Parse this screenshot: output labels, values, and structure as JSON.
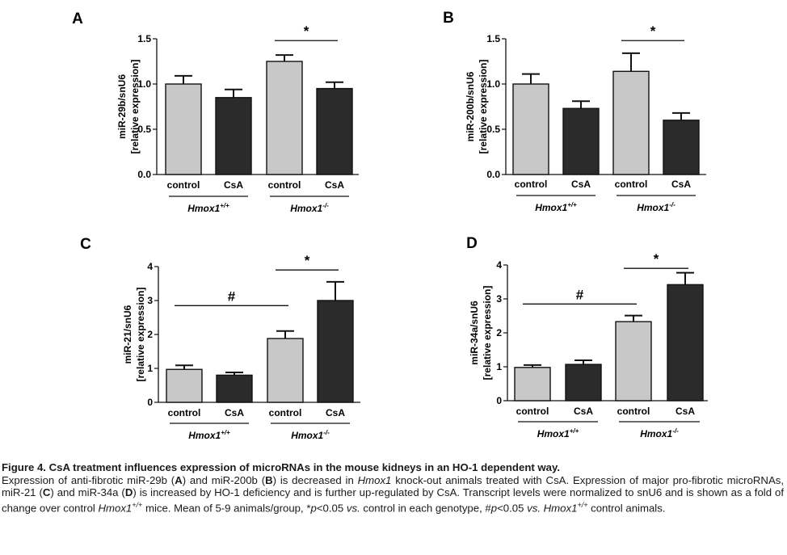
{
  "chart_data": [
    {
      "type": "bar",
      "panel_label": "A",
      "categories": [
        "control",
        "CsA",
        "control",
        "CsA"
      ],
      "values": [
        1.0,
        0.85,
        1.25,
        0.95
      ],
      "errors": [
        0.09,
        0.09,
        0.07,
        0.07
      ],
      "bar_colors": [
        "#c8c8c8",
        "#2b2b2b",
        "#c8c8c8",
        "#2b2b2b"
      ],
      "ylabel_line1": "miR-29b/snU6",
      "ylabel_line2": "[relative expression]",
      "ylim": [
        0,
        1.5
      ],
      "yticks": [
        0.0,
        0.5,
        1.0,
        1.5
      ],
      "ytick_labels": [
        "0.0",
        "0.5",
        "1.0",
        "1.5"
      ],
      "groups": [
        {
          "label_main": "Hmox1",
          "label_sup": "+/+",
          "bars": [
            0,
            1
          ]
        },
        {
          "label_main": "Hmox1",
          "label_sup": "-/-",
          "bars": [
            2,
            3
          ]
        }
      ],
      "annotations": [
        {
          "symbol": "*",
          "from_bar": 2,
          "to_bar": 3,
          "y": 1.48
        }
      ]
    },
    {
      "type": "bar",
      "panel_label": "B",
      "categories": [
        "control",
        "CsA",
        "control",
        "CsA"
      ],
      "values": [
        1.0,
        0.73,
        1.14,
        0.6
      ],
      "errors": [
        0.11,
        0.08,
        0.2,
        0.08
      ],
      "bar_colors": [
        "#c8c8c8",
        "#2b2b2b",
        "#c8c8c8",
        "#2b2b2b"
      ],
      "ylabel_line1": "miR-200b/snU6",
      "ylabel_line2": "[relative expression]",
      "ylim": [
        0,
        1.5
      ],
      "yticks": [
        0.0,
        0.5,
        1.0,
        1.5
      ],
      "ytick_labels": [
        "0.0",
        "0.5",
        "1.0",
        "1.5"
      ],
      "groups": [
        {
          "label_main": "Hmox1",
          "label_sup": "+/+",
          "bars": [
            0,
            1
          ]
        },
        {
          "label_main": "Hmox1",
          "label_sup": "-/-",
          "bars": [
            2,
            3
          ]
        }
      ],
      "annotations": [
        {
          "symbol": "*",
          "from_bar": 2,
          "to_bar": 3,
          "y": 1.48
        }
      ]
    },
    {
      "type": "bar",
      "panel_label": "C",
      "categories": [
        "control",
        "CsA",
        "control",
        "CsA"
      ],
      "values": [
        0.97,
        0.8,
        1.88,
        3.0
      ],
      "errors": [
        0.12,
        0.08,
        0.22,
        0.55
      ],
      "bar_colors": [
        "#c8c8c8",
        "#2b2b2b",
        "#c8c8c8",
        "#2b2b2b"
      ],
      "ylabel_line1": "miR-21/snU6",
      "ylabel_line2": "[relative expression]",
      "ylim": [
        0,
        4
      ],
      "yticks": [
        0,
        1,
        2,
        3,
        4
      ],
      "ytick_labels": [
        "0",
        "1",
        "2",
        "3",
        "4"
      ],
      "groups": [
        {
          "label_main": "Hmox1",
          "label_sup": "+/+",
          "bars": [
            0,
            1
          ]
        },
        {
          "label_main": "Hmox1",
          "label_sup": "-/-",
          "bars": [
            2,
            3
          ]
        }
      ],
      "annotations": [
        {
          "symbol": "#",
          "from_bar": 0,
          "to_bar": 2,
          "y": 2.85
        },
        {
          "symbol": "*",
          "from_bar": 2,
          "to_bar": 3,
          "y": 3.9
        }
      ]
    },
    {
      "type": "bar",
      "panel_label": "D",
      "categories": [
        "control",
        "CsA",
        "control",
        "CsA"
      ],
      "values": [
        0.98,
        1.07,
        2.33,
        3.42
      ],
      "errors": [
        0.07,
        0.12,
        0.18,
        0.35
      ],
      "bar_colors": [
        "#c8c8c8",
        "#2b2b2b",
        "#c8c8c8",
        "#2b2b2b"
      ],
      "ylabel_line1": "miR-34a/snU6",
      "ylabel_line2": "[relative expression]",
      "ylim": [
        0,
        4
      ],
      "yticks": [
        0,
        1,
        2,
        3,
        4
      ],
      "ytick_labels": [
        "0",
        "1",
        "2",
        "3",
        "4"
      ],
      "groups": [
        {
          "label_main": "Hmox1",
          "label_sup": "+/+",
          "bars": [
            0,
            1
          ]
        },
        {
          "label_main": "Hmox1",
          "label_sup": "-/-",
          "bars": [
            2,
            3
          ]
        }
      ],
      "annotations": [
        {
          "symbol": "#",
          "from_bar": 0,
          "to_bar": 2,
          "y": 2.85
        },
        {
          "symbol": "*",
          "from_bar": 2,
          "to_bar": 3,
          "y": 3.9
        }
      ]
    }
  ],
  "caption": {
    "title": "Figure 4. CsA treatment influences expression of microRNAs in the mouse kidneys in an HO-1 dependent way.",
    "body": [
      {
        "t": "Expression of anti-fibrotic miR-29b ("
      },
      {
        "t": "A",
        "b": true
      },
      {
        "t": ") and miR-200b ("
      },
      {
        "t": "B",
        "b": true
      },
      {
        "t": ") is decreased in "
      },
      {
        "t": "Hmox1",
        "i": true
      },
      {
        "t": " knock-out animals treated with CsA. Expression of major pro-fibrotic microRNAs, miR-21 ("
      },
      {
        "t": "C",
        "b": true
      },
      {
        "t": ") and miR-34a ("
      },
      {
        "t": "D",
        "b": true
      },
      {
        "t": ") is increased by HO-1 deficiency and is further up-regulated by CsA. Transcript levels were normalized to snU6 and is shown as a fold of change over control "
      },
      {
        "t": "Hmox1",
        "i": true
      },
      {
        "t": "+/+",
        "i": true,
        "sup": true
      },
      {
        "t": " mice. Mean of 5-9 animals/group, *"
      },
      {
        "t": "p",
        "i": true
      },
      {
        "t": "<0.05 "
      },
      {
        "t": "vs.",
        "i": true
      },
      {
        "t": " control in each genotype, #"
      },
      {
        "t": "p",
        "i": true
      },
      {
        "t": "<0.05 "
      },
      {
        "t": "vs. Hmox1",
        "i": true
      },
      {
        "t": "+/+",
        "i": true,
        "sup": true
      },
      {
        "t": " control animals."
      }
    ]
  }
}
